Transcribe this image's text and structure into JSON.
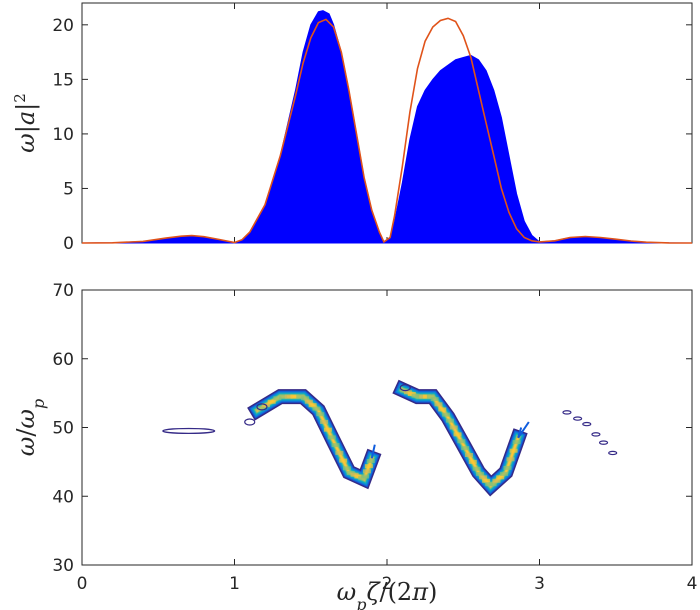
{
  "chart_data": [
    {
      "type": "area",
      "ylabel": "ω|a|²",
      "xlim": [
        0,
        4
      ],
      "ylim": [
        0,
        22
      ],
      "xticks": [
        0,
        1,
        2,
        3,
        4
      ],
      "xtick_labels_visible": false,
      "yticks": [
        0,
        5,
        10,
        15,
        20
      ],
      "ytick_labels": [
        "0",
        "5",
        "10",
        "15",
        "20"
      ],
      "grid": false,
      "series": [
        {
          "role": "filled area",
          "color": "#0000ff",
          "x": [
            0.0,
            0.2,
            0.4,
            0.55,
            0.65,
            0.72,
            0.8,
            0.9,
            1.0,
            1.05,
            1.1,
            1.2,
            1.3,
            1.4,
            1.45,
            1.5,
            1.55,
            1.58,
            1.62,
            1.65,
            1.7,
            1.75,
            1.8,
            1.85,
            1.9,
            1.95,
            1.98,
            2.02,
            2.05,
            2.1,
            2.15,
            2.2,
            2.25,
            2.3,
            2.35,
            2.4,
            2.45,
            2.5,
            2.55,
            2.6,
            2.65,
            2.7,
            2.75,
            2.8,
            2.85,
            2.9,
            2.95,
            3.0,
            3.1,
            3.2,
            3.3,
            3.4,
            3.5,
            3.6,
            3.7,
            3.85,
            4.0
          ],
          "y": [
            0.0,
            0.02,
            0.15,
            0.4,
            0.6,
            0.65,
            0.55,
            0.3,
            0.05,
            0.3,
            1.0,
            3.5,
            8.0,
            14.0,
            17.5,
            20.0,
            21.2,
            21.3,
            21.0,
            20.0,
            17.5,
            14.0,
            10.0,
            6.0,
            3.0,
            1.0,
            0.1,
            0.5,
            2.0,
            5.5,
            9.5,
            12.5,
            14.0,
            15.0,
            15.8,
            16.3,
            16.8,
            17.0,
            17.2,
            16.8,
            15.8,
            14.0,
            11.5,
            8.0,
            4.5,
            2.0,
            0.7,
            0.1,
            0.2,
            0.5,
            0.55,
            0.45,
            0.3,
            0.15,
            0.05,
            0.01,
            0.0
          ]
        },
        {
          "role": "line",
          "color": "#e0531a",
          "x": [
            0.0,
            0.2,
            0.4,
            0.55,
            0.65,
            0.72,
            0.8,
            0.9,
            1.0,
            1.05,
            1.1,
            1.2,
            1.3,
            1.4,
            1.45,
            1.5,
            1.55,
            1.6,
            1.65,
            1.7,
            1.75,
            1.8,
            1.85,
            1.9,
            1.95,
            1.98,
            2.02,
            2.05,
            2.1,
            2.15,
            2.2,
            2.25,
            2.3,
            2.35,
            2.4,
            2.45,
            2.5,
            2.55,
            2.6,
            2.65,
            2.7,
            2.75,
            2.8,
            2.85,
            2.9,
            2.95,
            3.0,
            3.1,
            3.2,
            3.3,
            3.4,
            3.5,
            3.6,
            3.7,
            3.85,
            4.0
          ],
          "y": [
            0.0,
            0.02,
            0.15,
            0.45,
            0.62,
            0.68,
            0.58,
            0.32,
            0.05,
            0.3,
            1.0,
            3.5,
            8.0,
            13.5,
            16.5,
            18.8,
            20.2,
            20.5,
            19.8,
            17.5,
            14.0,
            10.0,
            6.0,
            3.0,
            1.0,
            0.1,
            0.5,
            2.5,
            7.0,
            12.0,
            16.0,
            18.5,
            19.8,
            20.4,
            20.6,
            20.3,
            19.0,
            17.0,
            14.0,
            11.0,
            8.0,
            5.0,
            2.8,
            1.3,
            0.5,
            0.2,
            0.1,
            0.2,
            0.5,
            0.6,
            0.5,
            0.35,
            0.18,
            0.07,
            0.01,
            0.0
          ]
        }
      ]
    },
    {
      "type": "contour",
      "xlabel": "ωpζ/(2π)",
      "ylabel": "ω/ωp",
      "xlim": [
        0,
        4
      ],
      "ylim": [
        30,
        70
      ],
      "xticks": [
        0,
        1,
        2,
        3,
        4
      ],
      "xtick_labels": [
        "0",
        "1",
        "2",
        "3",
        "4"
      ],
      "yticks": [
        30,
        40,
        50,
        60,
        70
      ],
      "ytick_labels": [
        "30",
        "40",
        "50",
        "60",
        "70"
      ],
      "grid": false,
      "colormap": [
        "#352a87",
        "#0f5cdd",
        "#1481d6",
        "#06a4ca",
        "#2eb7a4",
        "#87bf77",
        "#d1bb59",
        "#fec832",
        "#f9fb0e"
      ],
      "features": [
        {
          "kind": "ellipse",
          "cx": 0.7,
          "cy": 49.5,
          "rx": 0.17,
          "ry": 0.35,
          "color": "#352a87"
        },
        {
          "kind": "ridge",
          "points": [
            [
              1.15,
              52.5
            ],
            [
              1.3,
              54.5
            ],
            [
              1.45,
              54.5
            ],
            [
              1.55,
              52.5
            ],
            [
              1.65,
              48.0
            ],
            [
              1.75,
              43.5
            ],
            [
              1.85,
              42.5
            ],
            [
              1.9,
              45.5
            ]
          ],
          "extras": [
            [
              1.1,
              50.8
            ],
            [
              1.18,
              53.0
            ]
          ],
          "end_tail": [
            [
              1.92,
              47.5
            ]
          ]
        },
        {
          "kind": "ridge",
          "points": [
            [
              2.1,
              55.5
            ],
            [
              2.2,
              54.5
            ],
            [
              2.3,
              54.5
            ],
            [
              2.4,
              51.5
            ],
            [
              2.5,
              47.5
            ],
            [
              2.6,
              43.5
            ],
            [
              2.68,
              41.5
            ],
            [
              2.78,
              43.5
            ],
            [
              2.86,
              48.5
            ]
          ],
          "extras": [
            [
              2.12,
              55.8
            ]
          ],
          "end_tail": [
            [
              2.88,
              50.0
            ],
            [
              2.93,
              50.8
            ]
          ]
        },
        {
          "kind": "islands",
          "points": [
            [
              3.18,
              52.2
            ],
            [
              3.25,
              51.3
            ],
            [
              3.31,
              50.5
            ],
            [
              3.37,
              49.0
            ],
            [
              3.42,
              47.8
            ],
            [
              3.48,
              46.3
            ]
          ],
          "color": "#352a87"
        }
      ]
    }
  ]
}
